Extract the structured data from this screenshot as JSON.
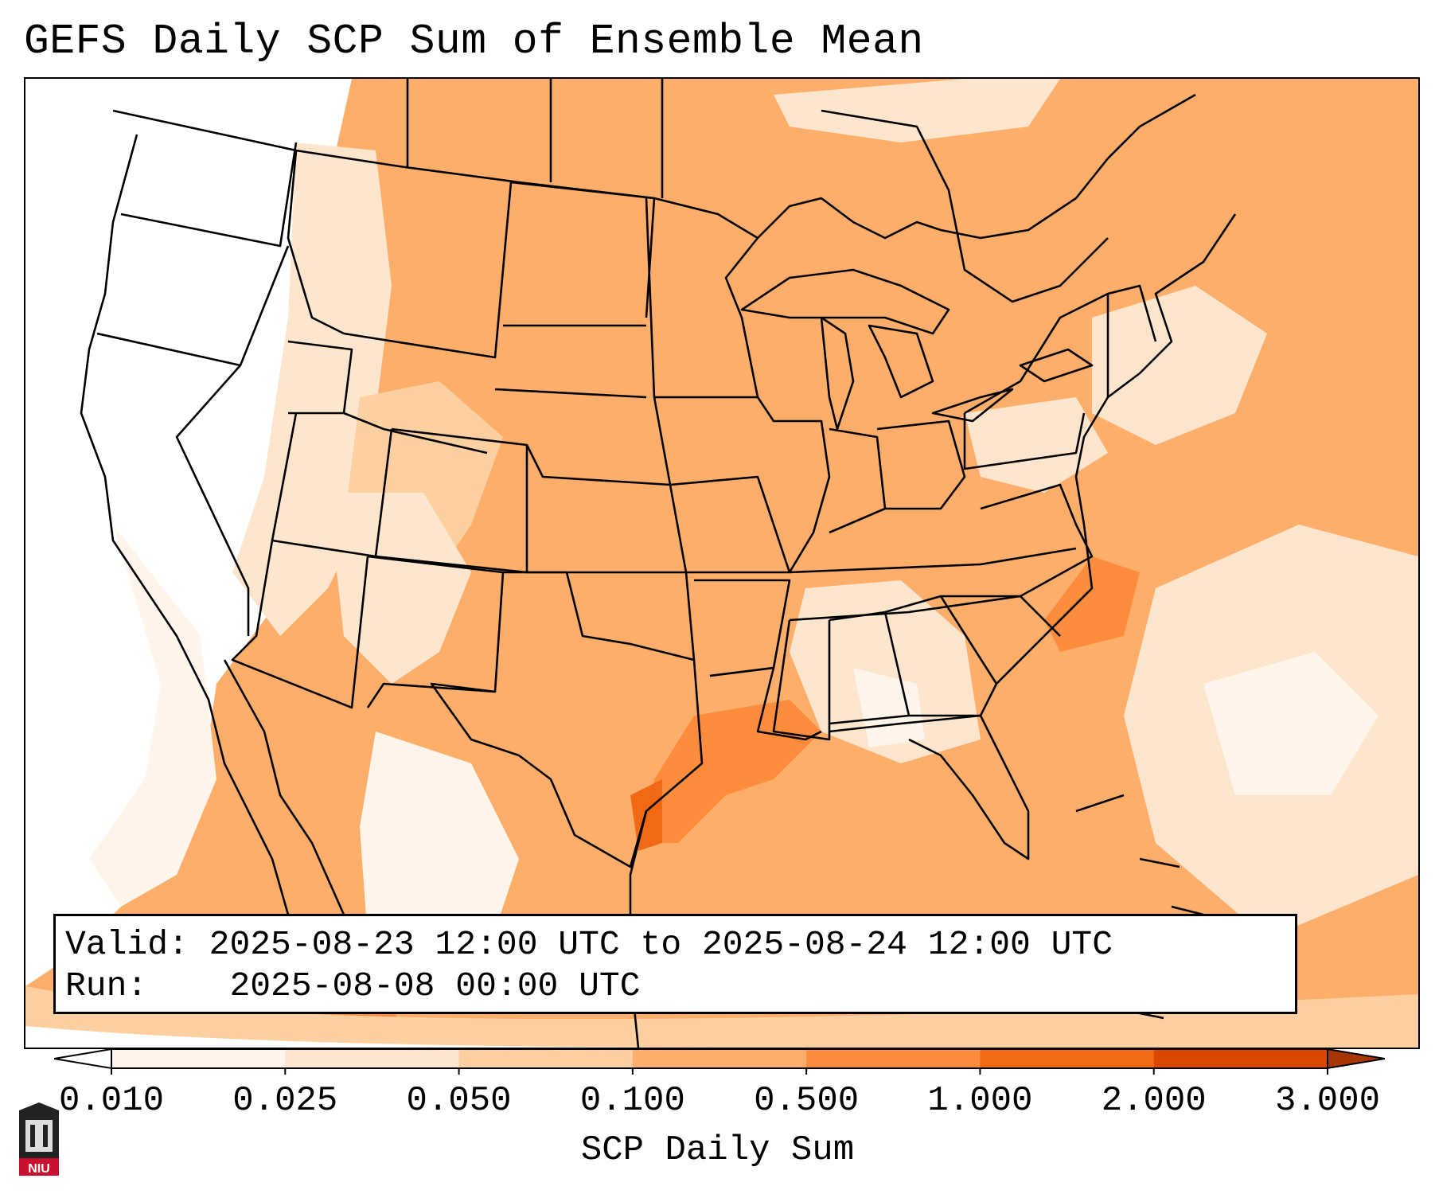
{
  "title": "GEFS Daily SCP Sum of Ensemble Mean",
  "info": {
    "valid_label": "Valid:",
    "valid_value": "2025-08-23 12:00 UTC to 2025-08-24 12:00 UTC",
    "run_label": "Run:",
    "run_value": "2025-08-08 00:00 UTC"
  },
  "colorbar": {
    "label": "SCP Daily Sum",
    "ticks": [
      "0.010",
      "0.025",
      "0.050",
      "0.100",
      "0.500",
      "1.000",
      "2.000",
      "3.000"
    ],
    "colors": [
      "#fff5eb",
      "#fee6ce",
      "#fdd0a2",
      "#fdae6b",
      "#fd8d3c",
      "#f16913",
      "#d94801",
      "#a63603"
    ],
    "under_color": "#ffffff",
    "over_color": "#a63603"
  },
  "legend_colors": {
    "land_border": "#000000",
    "background": "#ffffff"
  },
  "logo": {
    "text": "NIU",
    "icon": "university-seal-icon"
  }
}
